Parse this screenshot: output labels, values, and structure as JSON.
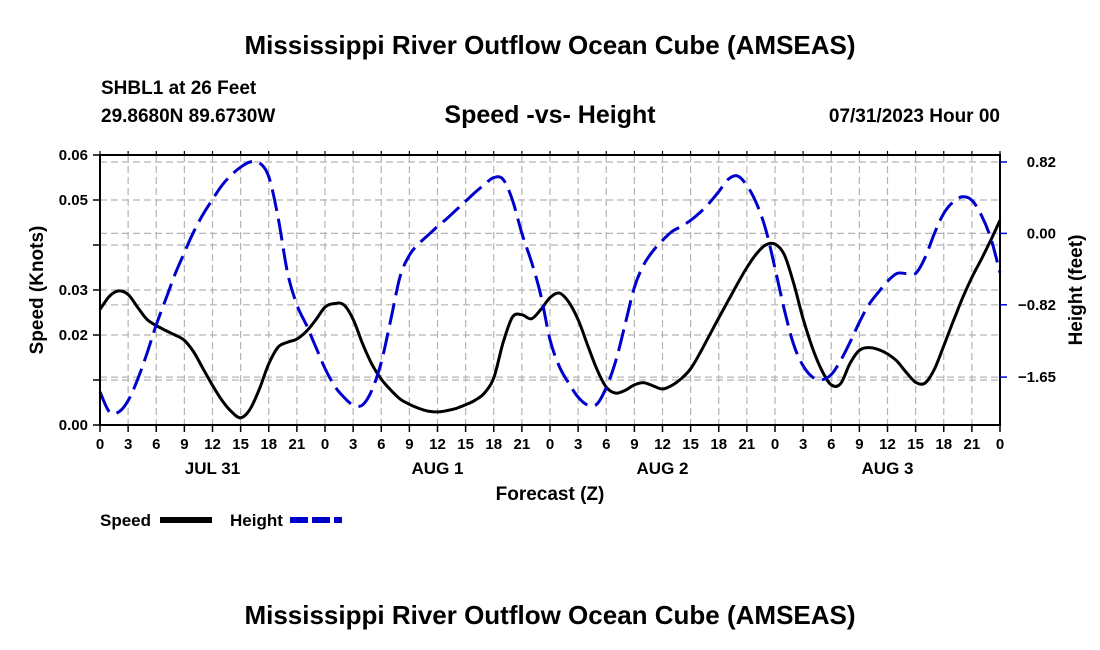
{
  "header": {
    "title": "Mississippi River Outflow Ocean Cube (AMSEAS)",
    "station": "SHBL1 at 26 Feet",
    "coordinates": "29.8680N  89.6730W",
    "subtitle": "Speed -vs- Height",
    "datetime": "07/31/2023 Hour 00"
  },
  "footer": {
    "title": "Mississippi River Outflow Ocean Cube (AMSEAS)"
  },
  "chart_data": {
    "type": "line",
    "title": "Speed -vs- Height",
    "xlabel": "Forecast (Z)",
    "ylabel": "Speed (Knots)",
    "y2label": "Height (feet)",
    "xlim": [
      0,
      96
    ],
    "ylim": [
      0,
      0.06
    ],
    "y2lim": [
      -2.2,
      0.9
    ],
    "grid": true,
    "x_ticks": [
      0,
      3,
      6,
      9,
      12,
      15,
      18,
      21,
      24,
      27,
      30,
      33,
      36,
      39,
      42,
      45,
      48,
      51,
      54,
      57,
      60,
      63,
      66,
      69,
      72,
      75,
      78,
      81,
      84,
      87,
      90,
      93,
      96
    ],
    "x_tick_labels": [
      "0",
      "3",
      "6",
      "9",
      "12",
      "15",
      "18",
      "21",
      "0",
      "3",
      "6",
      "9",
      "12",
      "15",
      "18",
      "21",
      "0",
      "3",
      "6",
      "9",
      "12",
      "15",
      "18",
      "21",
      "0",
      "3",
      "6",
      "9",
      "12",
      "15",
      "18",
      "21",
      "0"
    ],
    "day_labels": [
      {
        "label": "JUL 31",
        "x": 12
      },
      {
        "label": "AUG 1",
        "x": 36
      },
      {
        "label": "AUG 2",
        "x": 60
      },
      {
        "label": "AUG 3",
        "x": 84
      }
    ],
    "y_ticks": [
      0,
      0.01,
      0.02,
      0.03,
      0.04,
      0.05,
      0.06
    ],
    "y_tick_labels": [
      "0.00",
      "",
      "0.02",
      "0.03",
      "",
      "0.05",
      "0.06"
    ],
    "y2_ticks": [
      0.82,
      0.0,
      -0.82,
      -1.65
    ],
    "y2_tick_labels": [
      "0.82",
      "0.00",
      "−0.82",
      "−1.65"
    ],
    "legend": [
      {
        "name": "Speed",
        "color": "#000000",
        "dash": "solid"
      },
      {
        "name": "Height",
        "color": "#0000cc",
        "dash": "dashed"
      }
    ],
    "legend_position": "bottom-left",
    "series": [
      {
        "name": "Speed",
        "axis": "left",
        "color": "#000000",
        "x": [
          0,
          1,
          2,
          3,
          4,
          5,
          6,
          7,
          8,
          9,
          10,
          11,
          12,
          13,
          14,
          15,
          16,
          17,
          18,
          19,
          20,
          21,
          22,
          23,
          24,
          25,
          26,
          27,
          28,
          29,
          30,
          31,
          32,
          33,
          34,
          35,
          36,
          37,
          38,
          39,
          40,
          41,
          42,
          43,
          44,
          45,
          46,
          47,
          48,
          49,
          50,
          51,
          52,
          53,
          54,
          55,
          56,
          57,
          58,
          59,
          60,
          61,
          62,
          63,
          64,
          65,
          66,
          67,
          68,
          69,
          70,
          71,
          72,
          73,
          74,
          75,
          76,
          77,
          78,
          79,
          80,
          81,
          82,
          83,
          84,
          85,
          86,
          87,
          88,
          89,
          90,
          91,
          92,
          93,
          94,
          95,
          96
        ],
        "values": [
          0.0257,
          0.0286,
          0.0298,
          0.029,
          0.0262,
          0.0235,
          0.0221,
          0.021,
          0.02,
          0.0188,
          0.0162,
          0.0125,
          0.0088,
          0.0055,
          0.003,
          0.0016,
          0.0035,
          0.008,
          0.0136,
          0.0173,
          0.0184,
          0.0191,
          0.0208,
          0.0233,
          0.0262,
          0.027,
          0.0267,
          0.0235,
          0.0181,
          0.0135,
          0.0102,
          0.0078,
          0.0058,
          0.0046,
          0.0037,
          0.0031,
          0.0029,
          0.0032,
          0.0037,
          0.0045,
          0.0055,
          0.0071,
          0.0105,
          0.0183,
          0.024,
          0.0245,
          0.0236,
          0.0256,
          0.0283,
          0.0293,
          0.0273,
          0.0234,
          0.0178,
          0.0124,
          0.0084,
          0.0071,
          0.0077,
          0.0089,
          0.0094,
          0.0087,
          0.008,
          0.0088,
          0.0103,
          0.0125,
          0.016,
          0.0199,
          0.0238,
          0.0276,
          0.0314,
          0.035,
          0.038,
          0.04,
          0.0402,
          0.0378,
          0.0314,
          0.0236,
          0.0171,
          0.0121,
          0.0089,
          0.0092,
          0.0137,
          0.0166,
          0.0172,
          0.0168,
          0.0158,
          0.0142,
          0.0117,
          0.0095,
          0.0093,
          0.0124,
          0.0176,
          0.023,
          0.0282,
          0.0328,
          0.0368,
          0.041,
          0.0455
        ]
      },
      {
        "name": "Height",
        "axis": "right",
        "color": "#0000cc",
        "x": [
          0,
          1,
          2,
          3,
          4,
          5,
          6,
          7,
          8,
          9,
          10,
          11,
          12,
          13,
          14,
          15,
          16,
          17,
          18,
          19,
          20,
          21,
          22,
          23,
          24,
          25,
          26,
          27,
          28,
          29,
          30,
          31,
          32,
          33,
          34,
          35,
          36,
          37,
          38,
          39,
          40,
          41,
          42,
          43,
          44,
          45,
          46,
          47,
          48,
          49,
          50,
          51,
          52,
          53,
          54,
          55,
          56,
          57,
          58,
          59,
          60,
          61,
          62,
          63,
          64,
          65,
          66,
          67,
          68,
          69,
          70,
          71,
          72,
          73,
          74,
          75,
          76,
          77,
          78,
          79,
          80,
          81,
          82,
          83,
          84,
          85,
          86,
          87,
          88,
          89,
          90,
          91,
          92,
          93,
          94,
          95,
          96
        ],
        "values": [
          -1.82,
          -2.05,
          -2.05,
          -1.92,
          -1.68,
          -1.38,
          -1.05,
          -0.76,
          -0.47,
          -0.22,
          0.02,
          0.22,
          0.39,
          0.55,
          0.67,
          0.76,
          0.82,
          0.81,
          0.65,
          0.18,
          -0.45,
          -0.82,
          -1.05,
          -1.3,
          -1.55,
          -1.75,
          -1.88,
          -1.97,
          -1.97,
          -1.8,
          -1.48,
          -1.0,
          -0.5,
          -0.25,
          -0.12,
          -0.02,
          0.08,
          0.17,
          0.27,
          0.37,
          0.47,
          0.56,
          0.64,
          0.62,
          0.38,
          0.0,
          -0.32,
          -0.7,
          -1.22,
          -1.53,
          -1.72,
          -1.88,
          -1.97,
          -1.96,
          -1.77,
          -1.47,
          -1.05,
          -0.62,
          -0.36,
          -0.2,
          -0.08,
          0.02,
          0.08,
          0.15,
          0.24,
          0.35,
          0.48,
          0.62,
          0.66,
          0.55,
          0.35,
          0.05,
          -0.4,
          -0.88,
          -1.28,
          -1.52,
          -1.65,
          -1.68,
          -1.62,
          -1.46,
          -1.25,
          -1.02,
          -0.82,
          -0.68,
          -0.55,
          -0.46,
          -0.46,
          -0.46,
          -0.28,
          0.0,
          0.23,
          0.36,
          0.42,
          0.38,
          0.21,
          -0.05,
          -0.45
        ]
      }
    ]
  }
}
